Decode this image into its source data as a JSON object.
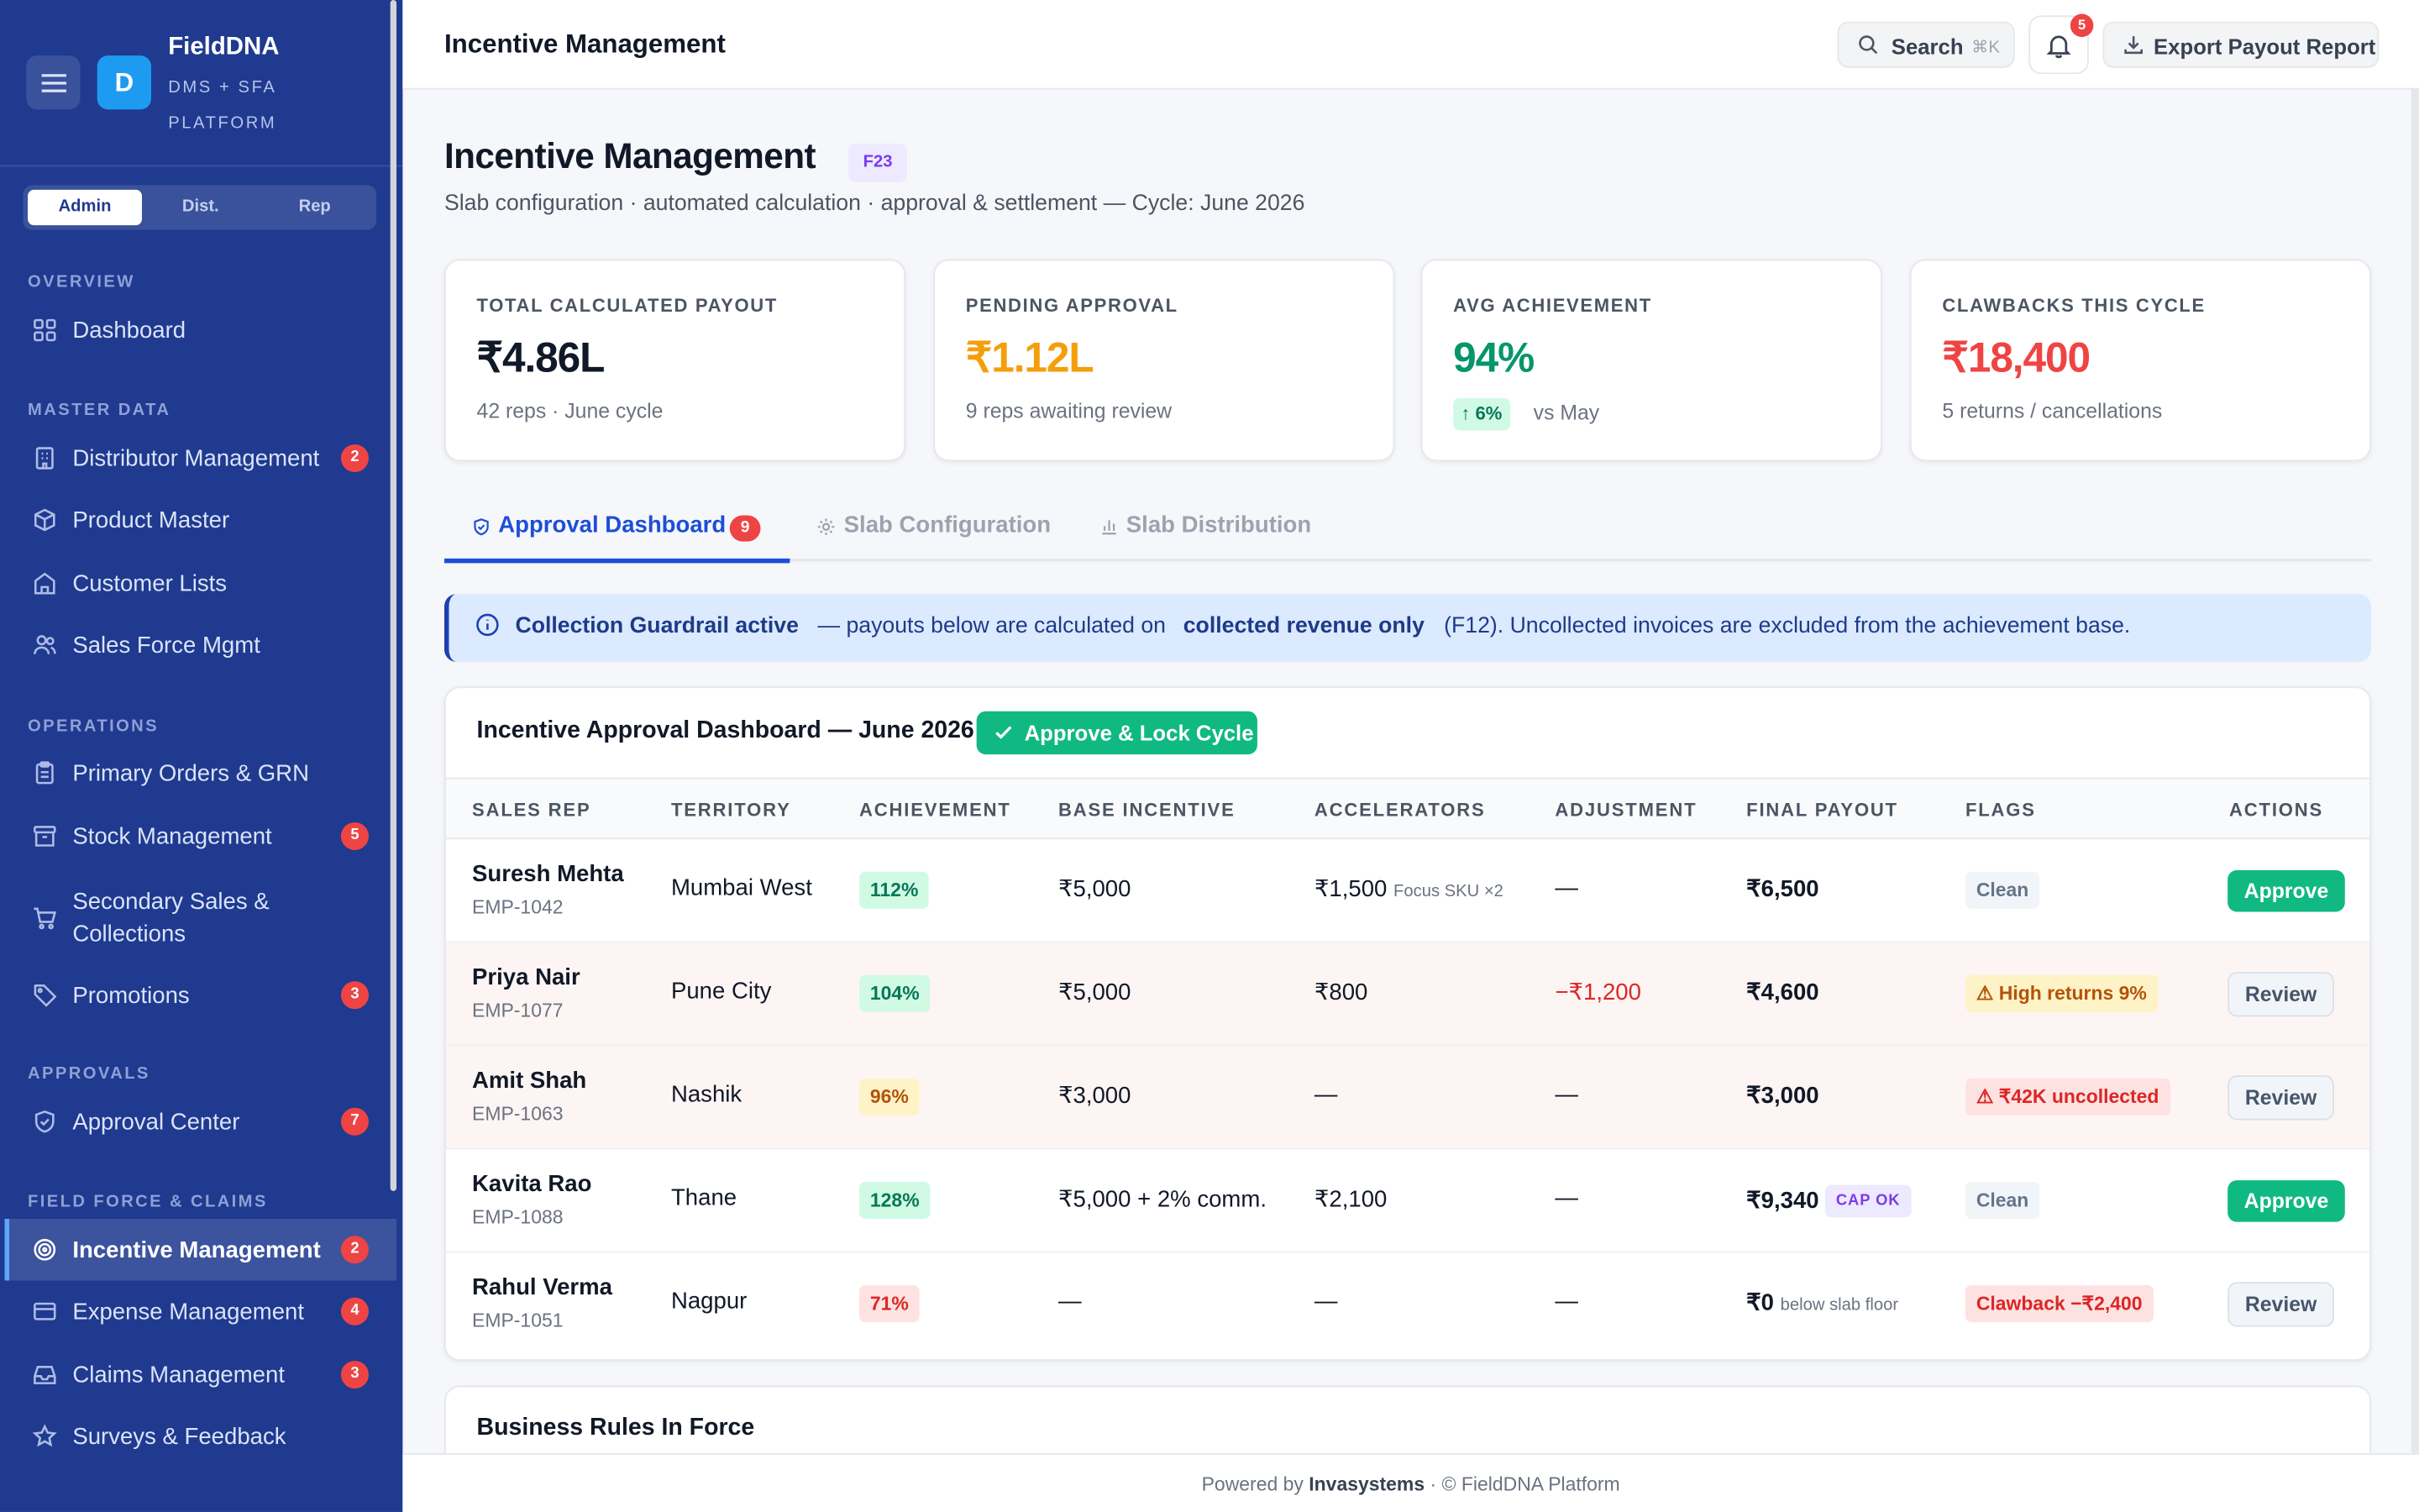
{
  "brand": {
    "name": "FieldDNA",
    "subtitle": "DMS + SFA PLATFORM",
    "logo_letter": "D"
  },
  "roles": [
    {
      "label": "Admin",
      "active": true
    },
    {
      "label": "Dist."
    },
    {
      "label": "Rep"
    }
  ],
  "sidebar": {
    "sections": [
      {
        "label": "OVERVIEW"
      },
      {
        "label": "MASTER DATA"
      },
      {
        "label": "OPERATIONS"
      },
      {
        "label": "APPROVALS"
      },
      {
        "label": "FIELD FORCE & CLAIMS"
      }
    ],
    "items": [
      {
        "label": "Dashboard",
        "icon": "grid-icon"
      },
      {
        "label": "Distributor Management",
        "badge": "2",
        "icon": "building-icon"
      },
      {
        "label": "Product Master",
        "icon": "box-icon"
      },
      {
        "label": "Customer Lists",
        "icon": "store-icon"
      },
      {
        "label": "Sales Force Mgmt",
        "icon": "users-icon"
      },
      {
        "label": "Primary Orders & GRN",
        "icon": "clipboard-icon"
      },
      {
        "label": "Stock Management",
        "badge": "5",
        "icon": "archive-icon"
      },
      {
        "label": "Secondary Sales & Collections",
        "icon": "cart-icon"
      },
      {
        "label": "Promotions",
        "badge": "3",
        "icon": "tag-icon"
      },
      {
        "label": "Approval Center",
        "badge": "7",
        "icon": "shield-icon"
      },
      {
        "label": "Incentive Management",
        "badge": "2",
        "icon": "target-icon",
        "active": true
      },
      {
        "label": "Expense Management",
        "badge": "4",
        "icon": "card-icon"
      },
      {
        "label": "Claims Management",
        "badge": "3",
        "icon": "inbox-icon"
      },
      {
        "label": "Surveys & Feedback",
        "icon": "star-icon"
      }
    ]
  },
  "topbar": {
    "title": "Incentive Management",
    "search_label": "Search",
    "search_shortcut": "⌘K",
    "notifications_count": "5",
    "export_label": "Export Payout Report"
  },
  "page": {
    "title": "Incentive Management",
    "tag": "F23",
    "subtitle": "Slab configuration · automated calculation · approval & settlement — Cycle: June 2026"
  },
  "kpis": [
    {
      "label": "TOTAL CALCULATED PAYOUT",
      "value": "₹4.86L",
      "note": "42 reps · June cycle",
      "color": "#111827"
    },
    {
      "label": "PENDING APPROVAL",
      "value": "₹1.12L",
      "note": "9 reps awaiting review",
      "color": "#f59e0b"
    },
    {
      "label": "AVG ACHIEVEMENT",
      "value": "94%",
      "delta": "↑ 6%",
      "note": "vs May",
      "color": "#059669"
    },
    {
      "label": "CLAWBACKS THIS CYCLE",
      "value": "₹18,400",
      "note": "5 returns / cancellations",
      "color": "#ef4444"
    }
  ],
  "tabs": [
    {
      "label": "Approval Dashboard",
      "badge": "9",
      "active": true
    },
    {
      "label": "Slab Configuration"
    },
    {
      "label": "Slab Distribution"
    }
  ],
  "banner": {
    "strong1": "Collection Guardrail active",
    "text1": "— payouts below are calculated on",
    "strong2": "collected revenue only",
    "text2": "(F12). Uncollected invoices are excluded from the achievement base."
  },
  "table": {
    "title": "Incentive Approval Dashboard — June 2026",
    "lock_button": "Approve & Lock Cycle",
    "columns": [
      "SALES REP",
      "TERRITORY",
      "ACHIEVEMENT",
      "BASE INCENTIVE",
      "ACCELERATORS",
      "ADJUSTMENT",
      "FINAL PAYOUT",
      "FLAGS",
      "ACTIONS"
    ],
    "rows": [
      {
        "name": "Suresh Mehta",
        "id": "EMP-1042",
        "territory": "Mumbai West",
        "achievement": "112%",
        "base": "₹5,000",
        "accel": "₹1,500",
        "accel_note": "Focus SKU ×2",
        "adjustment": "—",
        "final": "₹6,500",
        "final_note": "",
        "flag": "Clean",
        "action": "Approve"
      },
      {
        "name": "Priya Nair",
        "id": "EMP-1077",
        "territory": "Pune City",
        "achievement": "104%",
        "base": "₹5,000",
        "accel": "₹800",
        "accel_note": "",
        "adjustment": "−₹1,200",
        "final": "₹4,600",
        "final_note": "",
        "flag": "⚠ High returns 9%",
        "action": "Review"
      },
      {
        "name": "Amit Shah",
        "id": "EMP-1063",
        "territory": "Nashik",
        "achievement": "96%",
        "base": "₹3,000",
        "accel": "—",
        "accel_note": "",
        "adjustment": "—",
        "final": "₹3,000",
        "final_note": "",
        "flag": "⚠ ₹42K uncollected",
        "action": "Review"
      },
      {
        "name": "Kavita Rao",
        "id": "EMP-1088",
        "territory": "Thane",
        "achievement": "128%",
        "base": "₹5,000 + 2% comm.",
        "accel": "₹2,100",
        "accel_note": "",
        "adjustment": "—",
        "final": "₹9,340",
        "final_note": "CAP OK",
        "flag": "Clean",
        "action": "Approve"
      },
      {
        "name": "Rahul Verma",
        "id": "EMP-1051",
        "territory": "Nagpur",
        "achievement": "71%",
        "base": "—",
        "accel": "—",
        "accel_note": "",
        "adjustment": "—",
        "final": "₹0",
        "final_note": "below slab floor",
        "flag": "Clawback −₹2,400",
        "action": "Review"
      }
    ]
  },
  "rules_card": {
    "title": "Business Rules In Force"
  },
  "footer": {
    "prefix": "Powered by",
    "company": "Invasystems",
    "suffix": "·  © FieldDNA Platform"
  }
}
